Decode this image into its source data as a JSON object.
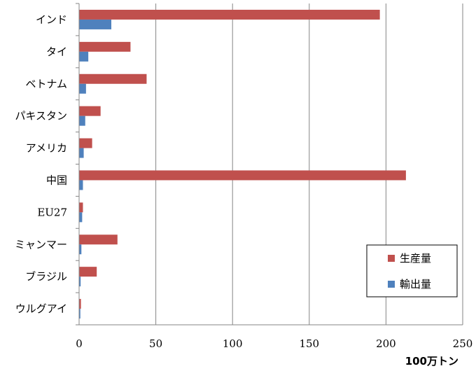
{
  "chart_data": {
    "type": "bar",
    "orientation": "horizontal",
    "categories": [
      "インド",
      "タイ",
      "ベトナム",
      "パキスタン",
      "アメリカ",
      "中国",
      "EU27",
      "ミャンマー",
      "ブラジル",
      "ウルグアイ"
    ],
    "series": [
      {
        "name": "生産量",
        "color": "#c0504d",
        "values": [
          196,
          33.5,
          44,
          14,
          8.5,
          213,
          2.5,
          25,
          11.5,
          1.2
        ]
      },
      {
        "name": "輸出量",
        "color": "#4f81bd",
        "values": [
          21,
          6,
          4.5,
          4,
          3,
          2.5,
          2,
          1.5,
          1,
          0.8
        ]
      }
    ],
    "xlim": [
      0,
      250
    ],
    "xticks": [
      "0",
      "50",
      "100",
      "150",
      "200",
      "250"
    ],
    "xlabel": "100万トン",
    "grid": true,
    "legend_position": "bottom-right"
  }
}
